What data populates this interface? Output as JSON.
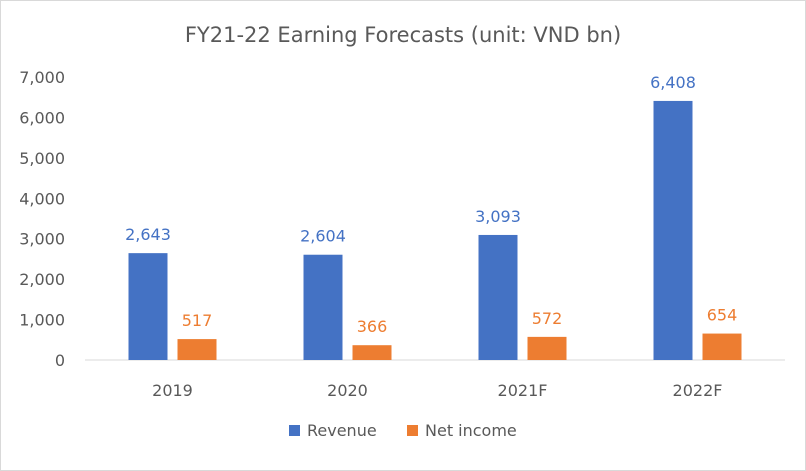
{
  "chart_data": {
    "type": "bar",
    "title": "FY21-22 Earning Forecasts (unit: VND bn)",
    "xlabel": "",
    "ylabel": "",
    "categories": [
      "2019",
      "2020",
      "2021F",
      "2022F"
    ],
    "series": [
      {
        "name": "Revenue",
        "values": [
          2643,
          2604,
          3093,
          6408
        ],
        "labels": [
          "2,643",
          "2,604",
          "3,093",
          "6,408"
        ],
        "color": "#4472C4"
      },
      {
        "name": "Net income",
        "values": [
          517,
          366,
          572,
          654
        ],
        "labels": [
          "517",
          "366",
          "572",
          "654"
        ],
        "color": "#ED7D31"
      }
    ],
    "ylim": [
      0,
      7000
    ],
    "yticks": [
      0,
      1000,
      2000,
      3000,
      4000,
      5000,
      6000,
      7000
    ],
    "ytick_labels": [
      "0",
      "1,000",
      "2,000",
      "3,000",
      "4,000",
      "5,000",
      "6,000",
      "7,000"
    ],
    "grid": false,
    "legend_position": "bottom"
  }
}
